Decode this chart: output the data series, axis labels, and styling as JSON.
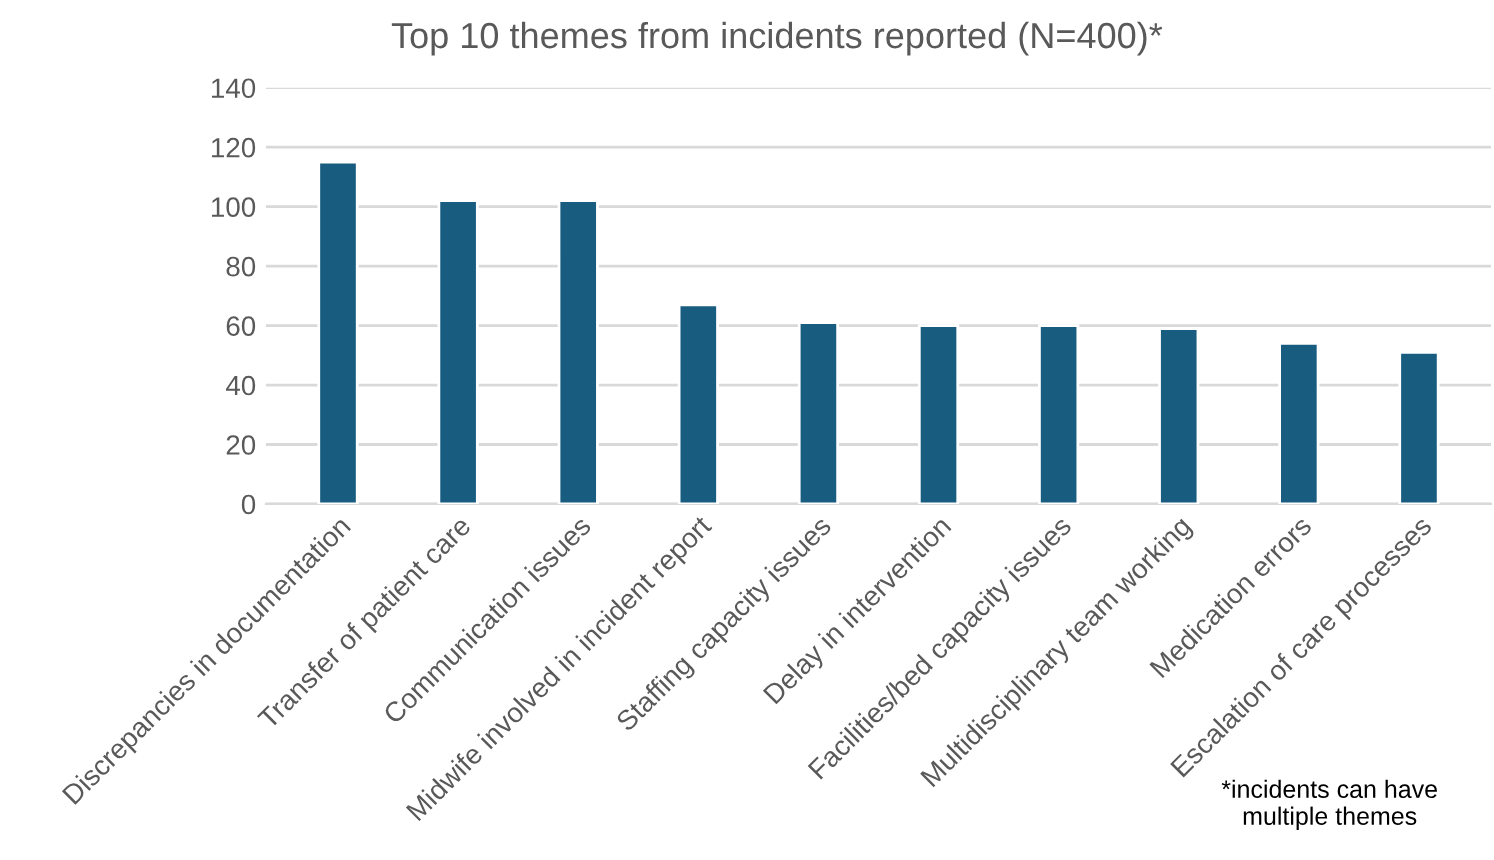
{
  "chart_data": {
    "type": "bar",
    "title": "Top 10 themes from incidents reported (N=400)*",
    "categories": [
      "Discrepancies in documentation",
      "Transfer of patient care",
      "Communication issues",
      "Midwife involved in incident report",
      "Staffing capacity issues",
      "Delay in intervention",
      "Facilities/bed capacity issues",
      "Multidisciplinary team working",
      "Medication errors",
      "Escalation of care processes"
    ],
    "values": [
      115,
      102,
      102,
      67,
      61,
      60,
      60,
      59,
      54,
      51
    ],
    "color": "#185c80",
    "ylim": [
      0,
      140
    ],
    "yticks": [
      0,
      20,
      40,
      60,
      80,
      100,
      120,
      140
    ],
    "grid": "y",
    "annotations": [
      "*incidents can have\nmultiple themes"
    ]
  }
}
